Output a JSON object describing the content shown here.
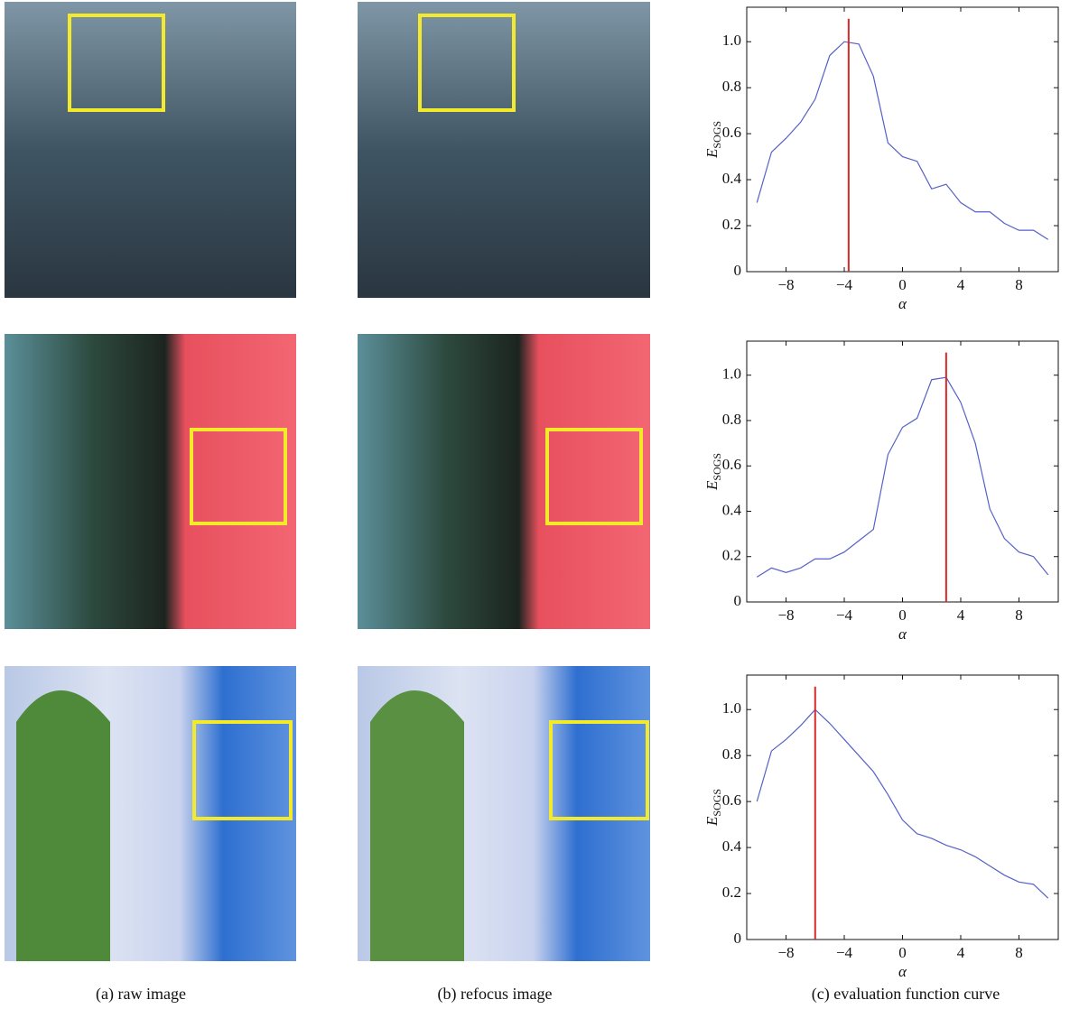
{
  "chart_data": [
    {
      "type": "line",
      "xlabel": "α",
      "ylabel": "E",
      "ylabel_subscript": "SOGS",
      "x": [
        -10,
        -9,
        -8,
        -7,
        -6,
        -5,
        -4,
        -3,
        -2,
        -1,
        0,
        1,
        2,
        3,
        4,
        5,
        6,
        7,
        8,
        9,
        10
      ],
      "series": [
        {
          "color": "#5560c8",
          "values": [
            0.3,
            0.52,
            0.58,
            0.65,
            0.75,
            0.94,
            1.0,
            0.99,
            0.85,
            0.56,
            0.5,
            0.48,
            0.36,
            0.38,
            0.3,
            0.26,
            0.26,
            0.21,
            0.18,
            0.18,
            0.14
          ]
        }
      ],
      "marker": {
        "x": -3.7,
        "top": 1.1,
        "color": "#d62a2a"
      },
      "xlim": [
        -10.7,
        10.7
      ],
      "ylim": [
        0,
        1.15
      ],
      "xticks": [
        {
          "value": -8,
          "label": "−8"
        },
        {
          "value": -4,
          "label": "−4"
        },
        0,
        4,
        8
      ],
      "yticks": [
        0,
        0.2,
        0.4,
        0.6,
        0.8,
        {
          "value": 1,
          "label": "1.0"
        }
      ]
    },
    {
      "type": "line",
      "xlabel": "α",
      "ylabel": "E",
      "ylabel_subscript": "SOGS",
      "x": [
        -10,
        -9,
        -8,
        -7,
        -6,
        -5,
        -4,
        -3,
        -2,
        -1,
        0,
        1,
        2,
        3,
        4,
        5,
        6,
        7,
        8,
        9,
        10
      ],
      "series": [
        {
          "color": "#5560c8",
          "values": [
            0.11,
            0.15,
            0.13,
            0.15,
            0.19,
            0.19,
            0.22,
            0.27,
            0.32,
            0.65,
            0.77,
            0.81,
            0.98,
            0.99,
            0.88,
            0.7,
            0.41,
            0.28,
            0.22,
            0.2,
            0.12
          ]
        }
      ],
      "marker": {
        "x": 3,
        "top": 1.1,
        "color": "#d62a2a"
      },
      "xlim": [
        -10.7,
        10.7
      ],
      "ylim": [
        0,
        1.15
      ],
      "xticks": [
        {
          "value": -8,
          "label": "−8"
        },
        {
          "value": -4,
          "label": "−4"
        },
        0,
        4,
        8
      ],
      "yticks": [
        0,
        0.2,
        0.4,
        0.6,
        0.8,
        {
          "value": 1,
          "label": "1.0"
        }
      ]
    },
    {
      "type": "line",
      "xlabel": "α",
      "ylabel": "E",
      "ylabel_subscript": "SOGS",
      "x": [
        -10,
        -9,
        -8,
        -7,
        -6,
        -5,
        -4,
        -3,
        -2,
        -1,
        0,
        1,
        2,
        3,
        4,
        5,
        6,
        7,
        8,
        9,
        10
      ],
      "series": [
        {
          "color": "#5560c8",
          "values": [
            0.6,
            0.82,
            0.87,
            0.93,
            1.0,
            0.94,
            0.87,
            0.8,
            0.73,
            0.63,
            0.52,
            0.46,
            0.44,
            0.41,
            0.39,
            0.36,
            0.32,
            0.28,
            0.25,
            0.24,
            0.18
          ]
        }
      ],
      "marker": {
        "x": -6,
        "top": 1.1,
        "color": "#d62a2a"
      },
      "xlim": [
        -10.7,
        10.7
      ],
      "ylim": [
        0,
        1.15
      ],
      "xticks": [
        {
          "value": -8,
          "label": "−8"
        },
        {
          "value": -4,
          "label": "−4"
        },
        0,
        4,
        8
      ],
      "yticks": [
        0,
        0.2,
        0.4,
        0.6,
        0.8,
        {
          "value": 1,
          "label": "1.0"
        }
      ]
    }
  ],
  "captions": [
    "(a) raw image",
    "(b) refocus image",
    "(c) evaluation function curve"
  ]
}
